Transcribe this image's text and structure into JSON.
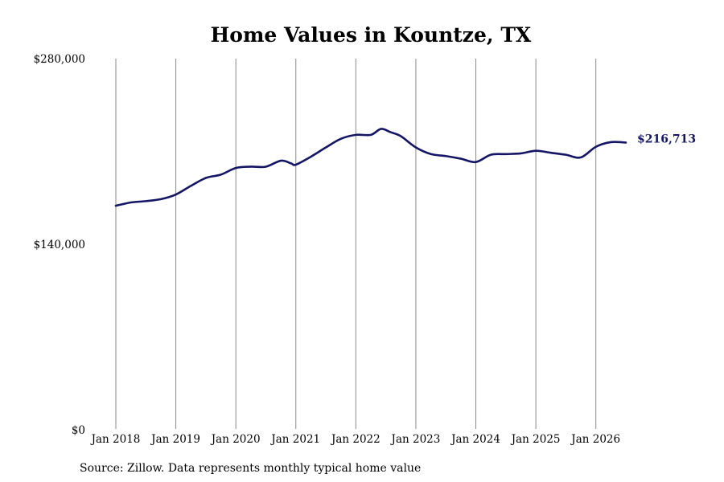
{
  "chart_data": {
    "type": "line",
    "title": "Home Values in Kountze, TX",
    "xlabel": "",
    "ylabel": "",
    "ylim": [
      0,
      280000
    ],
    "yticks": [
      {
        "value": 0,
        "label": "$0"
      },
      {
        "value": 140000,
        "label": "$140,000"
      },
      {
        "value": 280000,
        "label": "$280,000"
      }
    ],
    "xticks": [
      {
        "value": 2018.0,
        "label": "Jan 2018"
      },
      {
        "value": 2019.0,
        "label": "Jan 2019"
      },
      {
        "value": 2020.0,
        "label": "Jan 2020"
      },
      {
        "value": 2021.0,
        "label": "Jan 2021"
      },
      {
        "value": 2022.0,
        "label": "Jan 2022"
      },
      {
        "value": 2023.0,
        "label": "Jan 2023"
      },
      {
        "value": 2024.0,
        "label": "Jan 2024"
      },
      {
        "value": 2025.0,
        "label": "Jan 2025"
      },
      {
        "value": 2026.0,
        "label": "Jan 2026"
      }
    ],
    "xlim": [
      2018.0,
      2026.5
    ],
    "grid": "vertical",
    "color": "#141565",
    "end_label": "$216,713",
    "series": [
      {
        "points": [
          [
            2018.0,
            169000
          ],
          [
            2018.25,
            171500
          ],
          [
            2018.5,
            172500
          ],
          [
            2018.75,
            174000
          ],
          [
            2019.0,
            177500
          ],
          [
            2019.25,
            184000
          ],
          [
            2019.5,
            190000
          ],
          [
            2019.75,
            192500
          ],
          [
            2020.0,
            197500
          ],
          [
            2020.25,
            198500
          ],
          [
            2020.5,
            198500
          ],
          [
            2020.75,
            203000
          ],
          [
            2020.92,
            201000
          ],
          [
            2021.0,
            200000
          ],
          [
            2021.25,
            206000
          ],
          [
            2021.5,
            213000
          ],
          [
            2021.75,
            219500
          ],
          [
            2022.0,
            222500
          ],
          [
            2022.25,
            222500
          ],
          [
            2022.42,
            227000
          ],
          [
            2022.58,
            224500
          ],
          [
            2022.75,
            221500
          ],
          [
            2023.0,
            213000
          ],
          [
            2023.25,
            208000
          ],
          [
            2023.5,
            206500
          ],
          [
            2023.75,
            204500
          ],
          [
            2024.0,
            202000
          ],
          [
            2024.25,
            207500
          ],
          [
            2024.5,
            208000
          ],
          [
            2024.75,
            208500
          ],
          [
            2025.0,
            210500
          ],
          [
            2025.25,
            209000
          ],
          [
            2025.5,
            207500
          ],
          [
            2025.75,
            205500
          ],
          [
            2026.0,
            213500
          ],
          [
            2026.25,
            217000
          ],
          [
            2026.5,
            216713
          ]
        ]
      }
    ]
  },
  "source_note": "Source: Zillow. Data represents monthly typical home value"
}
